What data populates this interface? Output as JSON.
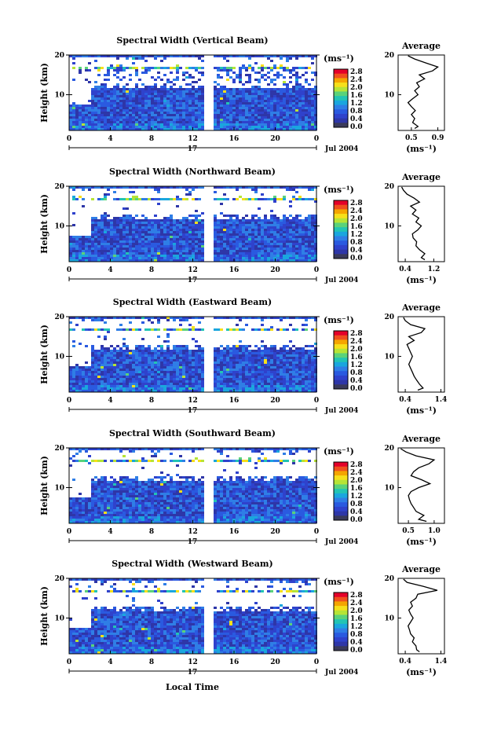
{
  "figure": {
    "x_axis_label": "Local Time",
    "day_label": "17",
    "date_label": "Jul 2004",
    "y_axis_label": "Height (km)",
    "colorbar_unit": "(ms⁻¹)",
    "profile_title": "Average",
    "profile_xlabel": "(ms⁻¹)"
  },
  "colorbar": {
    "ticks": [
      "2.8",
      "2.4",
      "2.0",
      "1.6",
      "1.2",
      "0.8",
      "0.4",
      "0.0"
    ],
    "colors": [
      "#e4002a",
      "#f0501e",
      "#f5a500",
      "#f6e01a",
      "#b6e436",
      "#5ad27a",
      "#22c4b4",
      "#1aa6de",
      "#2f7ee6",
      "#2a5ae0",
      "#2f42cc",
      "#2e36a8",
      "#3a3a5a"
    ]
  },
  "colors": {
    "heatmap_base": "#2b54d8",
    "gap": "#ffffff",
    "frame": "#000000"
  },
  "chart_data": [
    {
      "type": "heatmap",
      "title": "Spectral Width (Vertical Beam)",
      "x_ticks": [
        "0",
        "4",
        "8",
        "12",
        "16",
        "20",
        "0"
      ],
      "y_ticks": [
        "20",
        "10"
      ],
      "xlim": [
        0,
        24
      ],
      "ylim": [
        1,
        20
      ],
      "profile": {
        "type": "line",
        "title": "Average",
        "x_ticks": [
          "0.5",
          "0.9"
        ],
        "xlim": [
          0.3,
          1.0
        ],
        "y_ticks": [
          "20",
          "10"
        ],
        "points": [
          [
            0.55,
            1.5
          ],
          [
            0.6,
            2
          ],
          [
            0.52,
            3
          ],
          [
            0.55,
            4
          ],
          [
            0.5,
            5
          ],
          [
            0.56,
            6
          ],
          [
            0.5,
            7
          ],
          [
            0.45,
            8
          ],
          [
            0.52,
            9
          ],
          [
            0.6,
            10
          ],
          [
            0.55,
            11
          ],
          [
            0.62,
            12
          ],
          [
            0.58,
            13
          ],
          [
            0.7,
            14
          ],
          [
            0.62,
            15
          ],
          [
            0.82,
            16
          ],
          [
            0.9,
            17
          ],
          [
            0.72,
            18
          ],
          [
            0.55,
            19
          ],
          [
            0.45,
            19.8
          ]
        ]
      }
    },
    {
      "type": "heatmap",
      "title": "Spectral Width (Northward Beam)",
      "x_ticks": [
        "0",
        "4",
        "8",
        "12",
        "16",
        "20",
        "0"
      ],
      "y_ticks": [
        "20",
        "10"
      ],
      "xlim": [
        0,
        24
      ],
      "ylim": [
        1,
        20
      ],
      "profile": {
        "type": "line",
        "title": "Average",
        "x_ticks": [
          "0.4",
          "1.2"
        ],
        "xlim": [
          0.2,
          1.5
        ],
        "y_ticks": [
          "20",
          "10"
        ],
        "points": [
          [
            0.95,
            1.5
          ],
          [
            0.85,
            2
          ],
          [
            0.95,
            3
          ],
          [
            0.8,
            4
          ],
          [
            0.7,
            5
          ],
          [
            0.72,
            6
          ],
          [
            0.62,
            7
          ],
          [
            0.6,
            8
          ],
          [
            0.75,
            9
          ],
          [
            0.85,
            10
          ],
          [
            0.7,
            11
          ],
          [
            0.78,
            12
          ],
          [
            0.6,
            13
          ],
          [
            0.7,
            14
          ],
          [
            0.55,
            15
          ],
          [
            0.8,
            16
          ],
          [
            0.65,
            17
          ],
          [
            0.45,
            18
          ],
          [
            0.35,
            19
          ],
          [
            0.3,
            19.8
          ]
        ]
      }
    },
    {
      "type": "heatmap",
      "title": "Spectral Width (Eastward Beam)",
      "x_ticks": [
        "0",
        "4",
        "8",
        "12",
        "16",
        "20",
        "0"
      ],
      "y_ticks": [
        "20",
        "10"
      ],
      "xlim": [
        0,
        24
      ],
      "ylim": [
        1,
        20
      ],
      "profile": {
        "type": "line",
        "title": "Average",
        "x_ticks": [
          "0.4",
          "1.4"
        ],
        "xlim": [
          0.2,
          1.5
        ],
        "y_ticks": [
          "20",
          "10"
        ],
        "points": [
          [
            0.75,
            1.5
          ],
          [
            0.9,
            2
          ],
          [
            0.8,
            3
          ],
          [
            0.72,
            4
          ],
          [
            0.65,
            5
          ],
          [
            0.6,
            6
          ],
          [
            0.55,
            7
          ],
          [
            0.5,
            8
          ],
          [
            0.55,
            9
          ],
          [
            0.6,
            10
          ],
          [
            0.55,
            11
          ],
          [
            0.5,
            12
          ],
          [
            0.45,
            13
          ],
          [
            0.65,
            14
          ],
          [
            0.5,
            15
          ],
          [
            0.85,
            16
          ],
          [
            0.95,
            17
          ],
          [
            0.55,
            18
          ],
          [
            0.4,
            19
          ],
          [
            0.35,
            19.8
          ]
        ]
      }
    },
    {
      "type": "heatmap",
      "title": "Spectral Width (Southward Beam)",
      "x_ticks": [
        "0",
        "4",
        "8",
        "12",
        "16",
        "20",
        "0"
      ],
      "y_ticks": [
        "20",
        "10"
      ],
      "xlim": [
        0,
        24
      ],
      "ylim": [
        1,
        20
      ],
      "profile": {
        "type": "line",
        "title": "Average",
        "x_ticks": [
          "0.5",
          "1.0"
        ],
        "xlim": [
          0.3,
          1.2
        ],
        "y_ticks": [
          "20",
          "10"
        ],
        "points": [
          [
            0.85,
            1.5
          ],
          [
            0.7,
            2
          ],
          [
            0.8,
            3
          ],
          [
            0.65,
            4
          ],
          [
            0.6,
            5
          ],
          [
            0.55,
            6
          ],
          [
            0.52,
            7
          ],
          [
            0.5,
            8
          ],
          [
            0.55,
            9
          ],
          [
            0.7,
            10
          ],
          [
            0.92,
            11
          ],
          [
            0.75,
            12
          ],
          [
            0.55,
            13
          ],
          [
            0.6,
            14
          ],
          [
            0.7,
            15
          ],
          [
            0.9,
            16
          ],
          [
            1.0,
            17
          ],
          [
            0.65,
            18
          ],
          [
            0.45,
            19
          ],
          [
            0.35,
            19.8
          ]
        ]
      }
    },
    {
      "type": "heatmap",
      "title": "Spectral Width (Westward Beam)",
      "x_ticks": [
        "0",
        "4",
        "8",
        "12",
        "16",
        "20",
        "0"
      ],
      "y_ticks": [
        "20",
        "10"
      ],
      "xlim": [
        0,
        24
      ],
      "ylim": [
        1,
        20
      ],
      "profile": {
        "type": "line",
        "title": "Average",
        "x_ticks": [
          "0.4",
          "1.4"
        ],
        "xlim": [
          0.2,
          1.5
        ],
        "y_ticks": [
          "20",
          "10"
        ],
        "points": [
          [
            0.8,
            1.5
          ],
          [
            0.72,
            2
          ],
          [
            0.7,
            3
          ],
          [
            0.6,
            4
          ],
          [
            0.65,
            5
          ],
          [
            0.55,
            6
          ],
          [
            0.52,
            7
          ],
          [
            0.48,
            8
          ],
          [
            0.55,
            9
          ],
          [
            0.62,
            10
          ],
          [
            0.55,
            11
          ],
          [
            0.5,
            12
          ],
          [
            0.6,
            13
          ],
          [
            0.55,
            14
          ],
          [
            0.7,
            15
          ],
          [
            0.75,
            16
          ],
          [
            1.3,
            17
          ],
          [
            0.9,
            18
          ],
          [
            0.45,
            19
          ],
          [
            0.35,
            19.8
          ]
        ]
      }
    }
  ]
}
